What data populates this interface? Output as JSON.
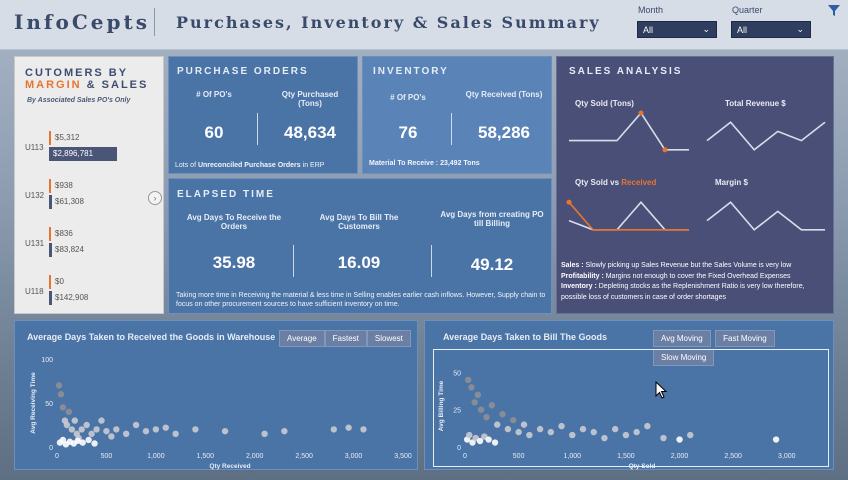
{
  "header": {
    "brand": "InfoCepts",
    "title": "Purchases, Inventory & Sales Summary",
    "filters": [
      {
        "label": "Month",
        "value": "All"
      },
      {
        "label": "Quarter",
        "value": "All"
      }
    ]
  },
  "customers": {
    "title_line1": "CUTOMERS BY",
    "title_margin": "MARGIN",
    "title_and": "& SALES",
    "subtitle": "By Associated  Sales PO's Only",
    "rows": [
      {
        "code": "U113",
        "margin": "$5,312",
        "sales": "$2,896,781",
        "sales_fraction": 1.0
      },
      {
        "code": "U132",
        "margin": "$938",
        "sales": "$61,308",
        "sales_fraction": 0.02
      },
      {
        "code": "U131",
        "margin": "$836",
        "sales": "$83,824",
        "sales_fraction": 0.03
      },
      {
        "code": "U118",
        "margin": "$0",
        "sales": "$142,908",
        "sales_fraction": 0.05
      }
    ]
  },
  "purchase_orders": {
    "title": "PURCHASE ORDERS",
    "kpis": [
      {
        "label": "# Of PO's",
        "value": "60"
      },
      {
        "label": "Qty Purchased (Tons)",
        "value": "48,634"
      }
    ],
    "footer_prefix": "Lots of ",
    "footer_bold": "Unreconciled  Purchase Orders",
    "footer_suffix": "  in ERP"
  },
  "inventory": {
    "title": "INVENTORY",
    "kpis": [
      {
        "label": "# Of PO's",
        "value": "76"
      },
      {
        "label": "Qty Received (Tons)",
        "value": "58,286"
      }
    ],
    "footer": "Material To Receive :  23,492 Tons"
  },
  "elapsed": {
    "title": "ELAPSED TIME",
    "kpis": [
      {
        "label": "Avg Days  To Receive the Orders",
        "value": "35.98"
      },
      {
        "label": "Avg Days To Bill The Customers",
        "value": "16.09"
      },
      {
        "label": "Avg Days from creating PO till Billing",
        "value": "49.12"
      }
    ],
    "footer": "Taking more time in Receiving the material & less time in Selling enables earlier cash inflows. However, Supply chain to focus on other procurement sources to have sufficient inventory on time."
  },
  "sales": {
    "title": "SALES ANALYSIS",
    "sparks": [
      {
        "label": "Qty Sold (Tons)",
        "values": [
          2,
          2,
          2,
          5,
          1,
          1
        ]
      },
      {
        "label": "Total Revenue $",
        "values": [
          2,
          4,
          1,
          3,
          2,
          4
        ]
      },
      {
        "label_prefix": "Qty Sold vs ",
        "label_accent": "Received",
        "values": [
          2,
          1,
          1,
          4,
          1,
          1
        ],
        "values2": [
          4,
          1,
          1,
          1,
          1,
          1
        ]
      },
      {
        "label": "Margin $",
        "values": [
          2,
          4,
          1,
          3,
          1,
          1
        ]
      }
    ],
    "notes": [
      {
        "key": "Sales :",
        "text": " Slowly picking up Sales Revenue but the Sales Volume is very low"
      },
      {
        "key": "Profitability :",
        "text": " Margins not enough to cover the Fixed Overhead Expenses"
      },
      {
        "key": "Inventory :",
        "text": "  Depleting stocks as the Replenishment Ratio is very low therefore, possible loss of customers in case of order shortages"
      }
    ],
    "accent": "#e8742e"
  },
  "chart_data": [
    {
      "type": "scatter",
      "title": "Average Days Taken to Received the Goods in Warehouse",
      "buttons": [
        "Average",
        "Fastest",
        "Slowest"
      ],
      "xlabel": "Qty Received",
      "ylabel": "Avg Receiving Time",
      "xlim": [
        0,
        3500
      ],
      "ylim": [
        0,
        100
      ],
      "xticks": [
        "0",
        "500",
        "1,000",
        "1,500",
        "2,000",
        "2,500",
        "3,000",
        "3,500"
      ],
      "yticks": [
        "0",
        "50",
        "100"
      ],
      "points": [
        [
          20,
          70
        ],
        [
          40,
          60
        ],
        [
          60,
          45
        ],
        [
          80,
          30
        ],
        [
          100,
          25
        ],
        [
          120,
          40
        ],
        [
          150,
          20
        ],
        [
          180,
          30
        ],
        [
          200,
          15
        ],
        [
          220,
          10
        ],
        [
          250,
          20
        ],
        [
          300,
          25
        ],
        [
          350,
          15
        ],
        [
          400,
          20
        ],
        [
          450,
          30
        ],
        [
          500,
          18
        ],
        [
          550,
          12
        ],
        [
          600,
          20
        ],
        [
          700,
          15
        ],
        [
          800,
          25
        ],
        [
          900,
          18
        ],
        [
          1000,
          20
        ],
        [
          1100,
          22
        ],
        [
          1200,
          15
        ],
        [
          1400,
          20
        ],
        [
          1700,
          18
        ],
        [
          2100,
          15
        ],
        [
          2300,
          18
        ],
        [
          2800,
          20
        ],
        [
          2950,
          22
        ],
        [
          3100,
          20
        ],
        [
          30,
          5
        ],
        [
          60,
          8
        ],
        [
          90,
          3
        ],
        [
          130,
          6
        ],
        [
          170,
          4
        ],
        [
          210,
          7
        ],
        [
          260,
          5
        ],
        [
          320,
          8
        ],
        [
          380,
          4
        ]
      ]
    },
    {
      "type": "scatter",
      "title": "Average Days Taken to Bill The Goods",
      "buttons": [
        "Avg Moving",
        "Fast Moving",
        "Slow Moving"
      ],
      "xlabel": "Qty Sold",
      "ylabel": "Avg Billing Time",
      "xlim": [
        0,
        3300
      ],
      "ylim": [
        0,
        55
      ],
      "xticks": [
        "0",
        "500",
        "1,000",
        "1,500",
        "2,000",
        "2,500",
        "3,000"
      ],
      "yticks": [
        "0",
        "25",
        "50"
      ],
      "points": [
        [
          30,
          45
        ],
        [
          60,
          40
        ],
        [
          90,
          30
        ],
        [
          120,
          35
        ],
        [
          150,
          25
        ],
        [
          200,
          20
        ],
        [
          250,
          28
        ],
        [
          300,
          15
        ],
        [
          350,
          22
        ],
        [
          400,
          12
        ],
        [
          450,
          18
        ],
        [
          500,
          10
        ],
        [
          550,
          15
        ],
        [
          600,
          8
        ],
        [
          700,
          12
        ],
        [
          800,
          10
        ],
        [
          900,
          14
        ],
        [
          1000,
          8
        ],
        [
          1100,
          12
        ],
        [
          1200,
          10
        ],
        [
          1300,
          6
        ],
        [
          1400,
          12
        ],
        [
          1500,
          8
        ],
        [
          1600,
          10
        ],
        [
          1700,
          14
        ],
        [
          1850,
          6
        ],
        [
          2000,
          5
        ],
        [
          2100,
          8
        ],
        [
          2900,
          5
        ],
        [
          20,
          5
        ],
        [
          40,
          8
        ],
        [
          70,
          3
        ],
        [
          100,
          6
        ],
        [
          140,
          4
        ],
        [
          180,
          7
        ],
        [
          220,
          5
        ],
        [
          280,
          3
        ]
      ]
    }
  ]
}
